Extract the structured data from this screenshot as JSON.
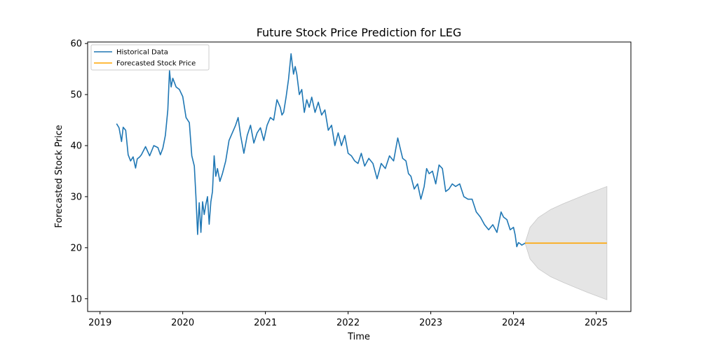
{
  "chart_data": {
    "type": "line",
    "title": "Future Stock Price Prediction for LEG",
    "xlabel": "Time",
    "ylabel": "Forecasted Stock Price",
    "xlim": [
      2018.85,
      2025.42
    ],
    "ylim": [
      7.5,
      60.3
    ],
    "xticks": [
      2019,
      2020,
      2021,
      2022,
      2023,
      2024,
      2025
    ],
    "xtick_labels": [
      "2019",
      "2020",
      "2021",
      "2022",
      "2023",
      "2024",
      "2025"
    ],
    "yticks": [
      10,
      20,
      30,
      40,
      50,
      60
    ],
    "ytick_labels": [
      "10",
      "20",
      "30",
      "40",
      "50",
      "60"
    ],
    "grid": false,
    "legend": {
      "placement": "top-left",
      "entries": [
        "Historical Data",
        "Forecasted Stock Price"
      ]
    },
    "series": [
      {
        "name": "Historical Data",
        "color": "#1f77b4",
        "x": [
          2019.2,
          2019.23,
          2019.26,
          2019.28,
          2019.31,
          2019.34,
          2019.37,
          2019.4,
          2019.43,
          2019.45,
          2019.48,
          2019.5,
          2019.55,
          2019.6,
          2019.65,
          2019.7,
          2019.73,
          2019.76,
          2019.79,
          2019.82,
          2019.84,
          2019.86,
          2019.88,
          2019.92,
          2019.96,
          2020.0,
          2020.04,
          2020.08,
          2020.11,
          2020.14,
          2020.16,
          2020.18,
          2020.2,
          2020.22,
          2020.24,
          2020.26,
          2020.28,
          2020.3,
          2020.32,
          2020.34,
          2020.36,
          2020.38,
          2020.4,
          2020.42,
          2020.45,
          2020.48,
          2020.52,
          2020.56,
          2020.6,
          2020.64,
          2020.67,
          2020.7,
          2020.74,
          2020.78,
          2020.82,
          2020.86,
          2020.9,
          2020.94,
          2020.98,
          2021.02,
          2021.06,
          2021.1,
          2021.14,
          2021.18,
          2021.2,
          2021.22,
          2021.25,
          2021.28,
          2021.31,
          2021.34,
          2021.36,
          2021.38,
          2021.41,
          2021.44,
          2021.47,
          2021.5,
          2021.53,
          2021.56,
          2021.6,
          2021.64,
          2021.68,
          2021.72,
          2021.76,
          2021.8,
          2021.84,
          2021.88,
          2021.92,
          2021.96,
          2022.0,
          2022.04,
          2022.08,
          2022.12,
          2022.16,
          2022.2,
          2022.25,
          2022.3,
          2022.35,
          2022.4,
          2022.45,
          2022.5,
          2022.55,
          2022.6,
          2022.63,
          2022.66,
          2022.7,
          2022.73,
          2022.76,
          2022.8,
          2022.84,
          2022.88,
          2022.92,
          2022.95,
          2022.98,
          2023.02,
          2023.06,
          2023.1,
          2023.14,
          2023.18,
          2023.22,
          2023.26,
          2023.3,
          2023.35,
          2023.4,
          2023.45,
          2023.5,
          2023.55,
          2023.6,
          2023.65,
          2023.7,
          2023.75,
          2023.8,
          2023.85,
          2023.88,
          2023.92,
          2023.96,
          2024.0,
          2024.02,
          2024.04,
          2024.06,
          2024.08,
          2024.1,
          2024.12,
          2024.14
        ],
        "y": [
          44.3,
          43.5,
          40.8,
          43.6,
          43.0,
          38.2,
          37.0,
          37.8,
          35.6,
          37.4,
          37.8,
          38.2,
          39.8,
          38.0,
          40.0,
          39.6,
          38.2,
          39.5,
          42.0,
          47.0,
          54.7,
          51.5,
          53.2,
          51.5,
          51.0,
          49.6,
          45.5,
          44.5,
          38.0,
          36.0,
          30.0,
          22.6,
          28.8,
          23.0,
          29.0,
          26.5,
          28.5,
          30.0,
          24.6,
          29.0,
          31.0,
          38.0,
          34.0,
          35.5,
          33.0,
          34.5,
          37.0,
          41.0,
          42.5,
          44.0,
          45.5,
          42.0,
          38.5,
          42.0,
          44.0,
          40.5,
          42.5,
          43.5,
          41.0,
          44.0,
          45.5,
          45.0,
          49.0,
          47.5,
          46.0,
          46.5,
          49.5,
          53.0,
          58.0,
          54.0,
          55.5,
          54.0,
          50.0,
          51.0,
          46.5,
          49.0,
          47.5,
          49.5,
          46.5,
          48.5,
          46.0,
          47.0,
          43.0,
          44.0,
          40.0,
          42.5,
          40.0,
          42.0,
          38.5,
          38.0,
          37.0,
          36.5,
          38.5,
          36.0,
          37.5,
          36.5,
          33.5,
          36.5,
          35.5,
          38.0,
          37.0,
          41.5,
          39.5,
          37.5,
          37.0,
          34.5,
          34.0,
          31.5,
          32.5,
          29.5,
          32.0,
          35.5,
          34.5,
          35.0,
          32.5,
          36.2,
          35.5,
          31.0,
          31.5,
          32.5,
          32.0,
          32.5,
          30.0,
          29.5,
          29.5,
          27.0,
          26.0,
          24.5,
          23.5,
          24.5,
          23.0,
          27.0,
          26.0,
          25.5,
          23.5,
          24.0,
          22.5,
          20.2,
          21.0,
          20.8,
          20.5,
          20.7,
          20.9
        ]
      },
      {
        "name": "Forecasted Stock Price",
        "color": "#ffa500",
        "x": [
          2024.14,
          2025.13
        ],
        "y": [
          20.9,
          20.9
        ]
      }
    ],
    "confidence_band": {
      "color": "#e5e5e5",
      "x": [
        2024.14,
        2024.2,
        2024.3,
        2024.45,
        2024.6,
        2024.75,
        2024.9,
        2025.0,
        2025.13
      ],
      "lower": [
        20.9,
        17.8,
        15.9,
        14.3,
        13.2,
        12.2,
        11.2,
        10.6,
        9.8
      ],
      "upper": [
        20.9,
        24.0,
        25.9,
        27.5,
        28.6,
        29.6,
        30.6,
        31.2,
        32.0
      ]
    }
  }
}
